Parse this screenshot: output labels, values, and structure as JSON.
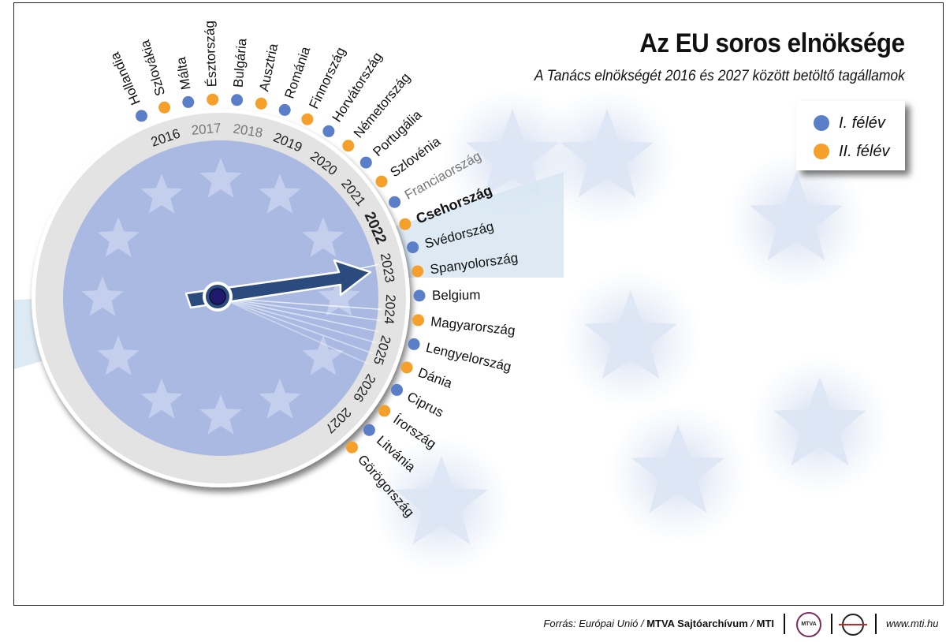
{
  "title": "Az EU soros elnöksége",
  "subtitle": "A Tanács elnökségét 2016 és 2027 között betöltő tagállamok",
  "legend": {
    "first_half": {
      "label": "I. félév",
      "color": "#5b7ec9"
    },
    "second_half": {
      "label": "II. félév",
      "color": "#f5a02a"
    }
  },
  "current_year": "2022",
  "years": [
    "2016",
    "2017",
    "2018",
    "2019",
    "2020",
    "2021",
    "2022",
    "2023",
    "2024",
    "2025",
    "2026",
    "2027"
  ],
  "presidencies": [
    {
      "year": "2016",
      "half": 1,
      "country": "Hollandia"
    },
    {
      "year": "2016",
      "half": 2,
      "country": "Szlovákia"
    },
    {
      "year": "2017",
      "half": 1,
      "country": "Málta"
    },
    {
      "year": "2017",
      "half": 2,
      "country": "Észtország"
    },
    {
      "year": "2018",
      "half": 1,
      "country": "Bulgária"
    },
    {
      "year": "2018",
      "half": 2,
      "country": "Ausztria"
    },
    {
      "year": "2019",
      "half": 1,
      "country": "Románia"
    },
    {
      "year": "2019",
      "half": 2,
      "country": "Finnország"
    },
    {
      "year": "2020",
      "half": 1,
      "country": "Horvátország"
    },
    {
      "year": "2020",
      "half": 2,
      "country": "Németország"
    },
    {
      "year": "2021",
      "half": 1,
      "country": "Portugália"
    },
    {
      "year": "2021",
      "half": 2,
      "country": "Szlovénia"
    },
    {
      "year": "2022",
      "half": 1,
      "country": "Franciaország"
    },
    {
      "year": "2022",
      "half": 2,
      "country": "Csehország"
    },
    {
      "year": "2023",
      "half": 1,
      "country": "Svédország"
    },
    {
      "year": "2023",
      "half": 2,
      "country": "Spanyolország"
    },
    {
      "year": "2024",
      "half": 1,
      "country": "Belgium"
    },
    {
      "year": "2024",
      "half": 2,
      "country": "Magyarország"
    },
    {
      "year": "2025",
      "half": 1,
      "country": "Lengyelország"
    },
    {
      "year": "2025",
      "half": 2,
      "country": "Dánia"
    },
    {
      "year": "2026",
      "half": 1,
      "country": "Ciprus"
    },
    {
      "year": "2026",
      "half": 2,
      "country": "Írország"
    },
    {
      "year": "2027",
      "half": 1,
      "country": "Litvánia"
    },
    {
      "year": "2027",
      "half": 2,
      "country": "Görögország"
    }
  ],
  "footer": {
    "source_prefix": "Forrás: Európai Unió / ",
    "source_bold": "MTVA Sajtóarchívum",
    "source_sep": " / ",
    "source_end": "MTI",
    "url": "www.mti.hu"
  }
}
